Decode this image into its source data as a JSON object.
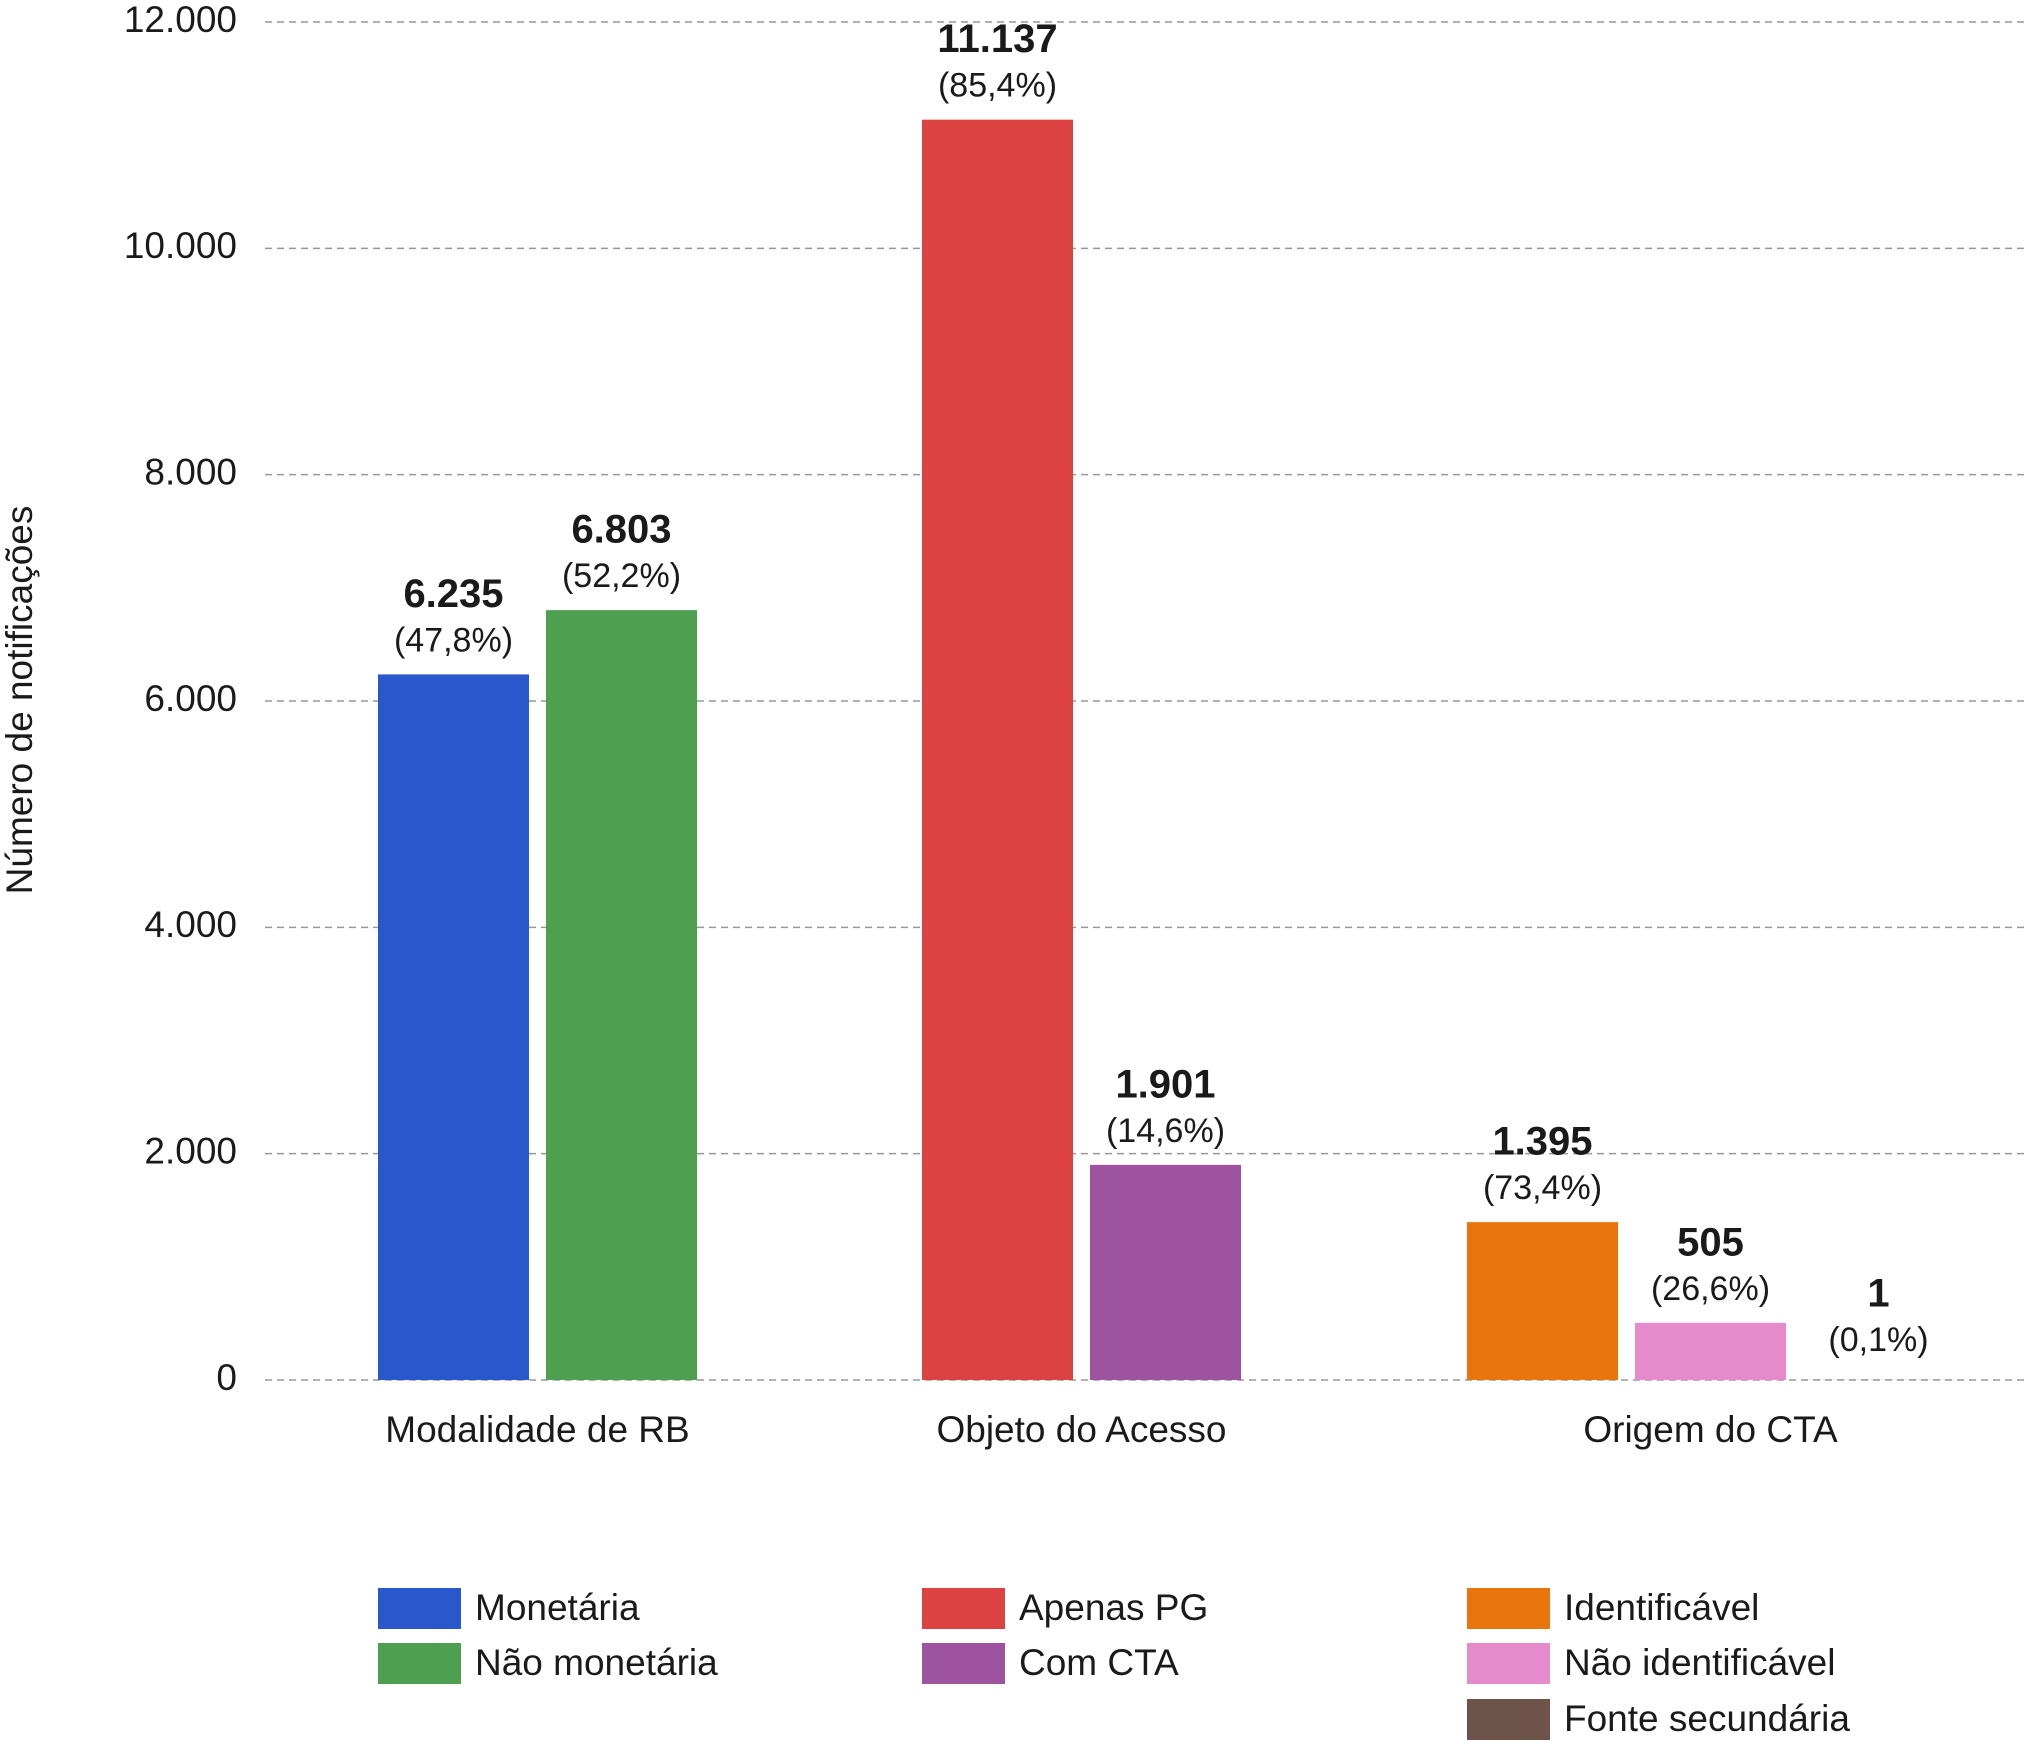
{
  "chart_data": {
    "type": "bar",
    "y_label": "Número de notificações",
    "categories": [
      "Modalidade de RB",
      "Objeto do Acesso",
      "Origem do CTA"
    ],
    "ylim": [
      0,
      12000
    ],
    "yticks": [
      0,
      {
        "value": 2000,
        "label": "2.000"
      },
      {
        "value": 4000,
        "label": "4.000"
      },
      {
        "value": 6000,
        "label": "6.000"
      },
      {
        "value": 8000,
        "label": "8.000"
      },
      {
        "value": 10000,
        "label": "10.000"
      },
      {
        "value": 12000,
        "label": "12.000"
      }
    ],
    "grid": true,
    "series": [
      {
        "name": "Monetária",
        "color": "#2b57cc",
        "values": [
          6235,
          null,
          null
        ],
        "value_labels": [
          "6.235",
          null,
          null
        ],
        "shares": [
          47.8,
          null,
          null
        ],
        "share_labels": [
          "(47,8%)",
          null,
          null
        ]
      },
      {
        "name": "Não monetária",
        "color": "#4e9f50",
        "values": [
          6803,
          null,
          null
        ],
        "value_labels": [
          "6.803",
          null,
          null
        ],
        "shares": [
          52.2,
          null,
          null
        ],
        "share_labels": [
          "(52,2%)",
          null,
          null
        ]
      },
      {
        "name": "Apenas PG",
        "color": "#dc4242",
        "values": [
          null,
          11137,
          null
        ],
        "value_labels": [
          null,
          "11.137",
          null
        ],
        "shares": [
          null,
          85.4,
          null
        ],
        "share_labels": [
          null,
          "(85,4%)",
          null
        ]
      },
      {
        "name": "Com CTA",
        "color": "#9d539f",
        "values": [
          null,
          1901,
          null
        ],
        "value_labels": [
          null,
          "1.901",
          null
        ],
        "shares": [
          null,
          14.6,
          null
        ],
        "share_labels": [
          null,
          "(14,6%)",
          null
        ]
      },
      {
        "name": "Identificável",
        "color": "#e8760c",
        "values": [
          null,
          null,
          1395
        ],
        "value_labels": [
          null,
          null,
          "1.395"
        ],
        "shares": [
          null,
          null,
          73.4
        ],
        "share_labels": [
          null,
          null,
          "(73,4%)"
        ]
      },
      {
        "name": "Não identificável",
        "color": "#e58bcb",
        "values": [
          null,
          null,
          505
        ],
        "shares": [
          null,
          null,
          26.6
        ],
        "share_labels": [
          null,
          null,
          "(26,6%)"
        ]
      },
      {
        "name": "Fonte secundária",
        "color": "#6e534b",
        "values": [
          null,
          null,
          1
        ],
        "shares": [
          null,
          null,
          0.1
        ],
        "share_labels": [
          null,
          null,
          "(0,1%)"
        ]
      }
    ]
  }
}
